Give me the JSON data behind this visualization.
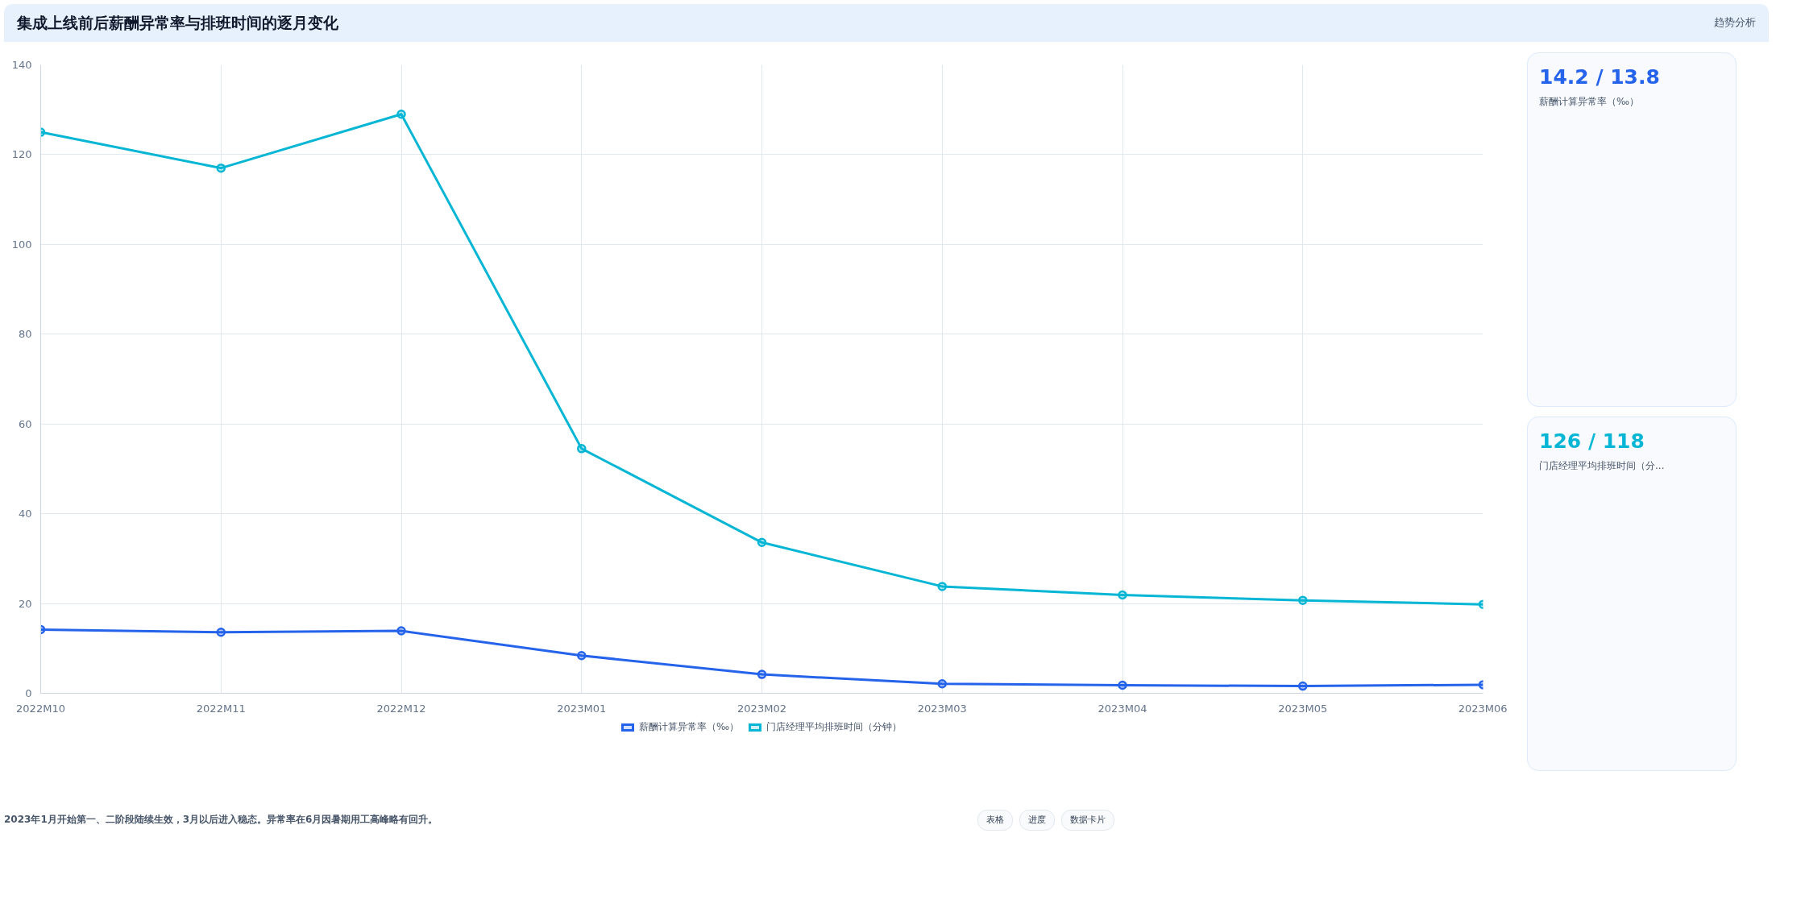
{
  "chart_data": [
    {
      "type": "line",
      "title": "集成上线前后薪酬异常率与排班时间的逐月变化",
      "categories": [
        "2022M10",
        "2022M11",
        "2022M12",
        "2023M01",
        "2023M02",
        "2023M03",
        "2023M04",
        "2023M05",
        "2023M06"
      ],
      "series": [
        {
          "name": "薪酬计算异常率（‰）",
          "color": "#2563eb",
          "values": [
            14.2,
            13.6,
            13.9,
            8.4,
            4.2,
            2.1,
            1.8,
            1.6,
            1.9
          ]
        },
        {
          "name": "门店经理平均排班时间（分钟）",
          "color": "#06b6d4",
          "values": [
            125,
            117,
            129,
            54.5,
            33.6,
            23.8,
            21.9,
            20.7,
            19.8
          ]
        }
      ],
      "ylim": [
        0,
        140
      ],
      "yticks": [
        0,
        20,
        40,
        60,
        80,
        100,
        120,
        140
      ],
      "grid": true,
      "legend": "bottom",
      "marker": "circle",
      "line_style": "solid",
      "annotations": [
        "趋势分析",
        "2023年1月开始第一、二阶段陆续生效，3月以后进入稳态。异常率在6月因暑期用工高峰略有回升。",
        "表格",
        "进度",
        "数据卡片"
      ]
    },
    {
      "type": "other",
      "annotations": [
        "14.2 / 13.8",
        "薪酬计算异常率（‰）",
        "126 / 118",
        "门店经理平均排班时间（分..."
      ]
    }
  ]
}
